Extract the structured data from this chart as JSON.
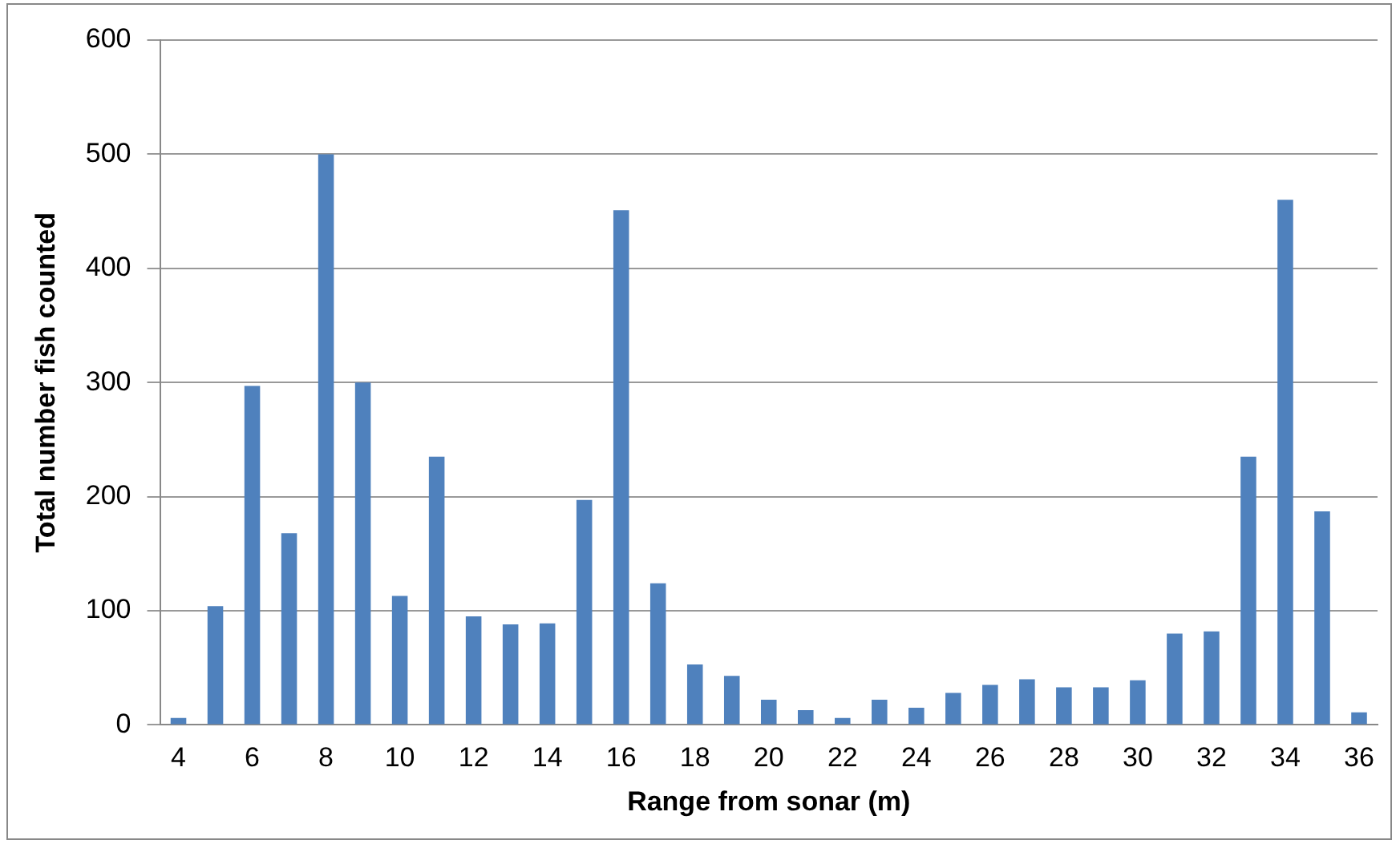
{
  "chart_data": {
    "type": "bar",
    "xlabel": "Range from sonar (m)",
    "ylabel": "Total number fish counted",
    "categories": [
      "4",
      null,
      "6",
      null,
      "8",
      null,
      "10",
      null,
      "12",
      null,
      "14",
      null,
      "16",
      null,
      "18",
      null,
      "20",
      null,
      "22",
      null,
      "24",
      null,
      "26",
      null,
      "28",
      null,
      "30",
      null,
      "32",
      null,
      "34",
      null,
      "36"
    ],
    "values": [
      6,
      104,
      297,
      168,
      500,
      300,
      113,
      235,
      95,
      88,
      89,
      197,
      451,
      124,
      53,
      43,
      22,
      13,
      6,
      22,
      15,
      28,
      35,
      40,
      33,
      33,
      39,
      80,
      82,
      235,
      460,
      187,
      11
    ],
    "color": "#4f81bd",
    "ylim": [
      0,
      600
    ],
    "yticks": [
      0,
      100,
      200,
      300,
      400,
      500,
      600
    ],
    "grid": "y",
    "legend": false
  }
}
